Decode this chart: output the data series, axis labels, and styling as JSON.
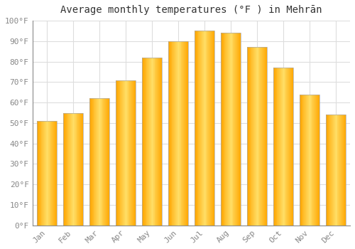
{
  "title": "Average monthly temperatures (°F ) in Mehrān",
  "months": [
    "Jan",
    "Feb",
    "Mar",
    "Apr",
    "May",
    "Jun",
    "Jul",
    "Aug",
    "Sep",
    "Oct",
    "Nov",
    "Dec"
  ],
  "values": [
    51,
    55,
    62,
    71,
    82,
    90,
    95,
    94,
    87,
    77,
    64,
    54
  ],
  "bar_color_center": "#FFD700",
  "bar_color_edge": "#FFA500",
  "background_color": "#FFFFFF",
  "grid_color": "#DDDDDD",
  "ylim": [
    0,
    100
  ],
  "yticks": [
    0,
    10,
    20,
    30,
    40,
    50,
    60,
    70,
    80,
    90,
    100
  ],
  "ytick_labels": [
    "0°F",
    "10°F",
    "20°F",
    "30°F",
    "40°F",
    "50°F",
    "60°F",
    "70°F",
    "80°F",
    "90°F",
    "100°F"
  ],
  "title_fontsize": 10,
  "tick_fontsize": 8,
  "bar_width": 0.75,
  "tick_color": "#888888",
  "spine_color": "#888888"
}
